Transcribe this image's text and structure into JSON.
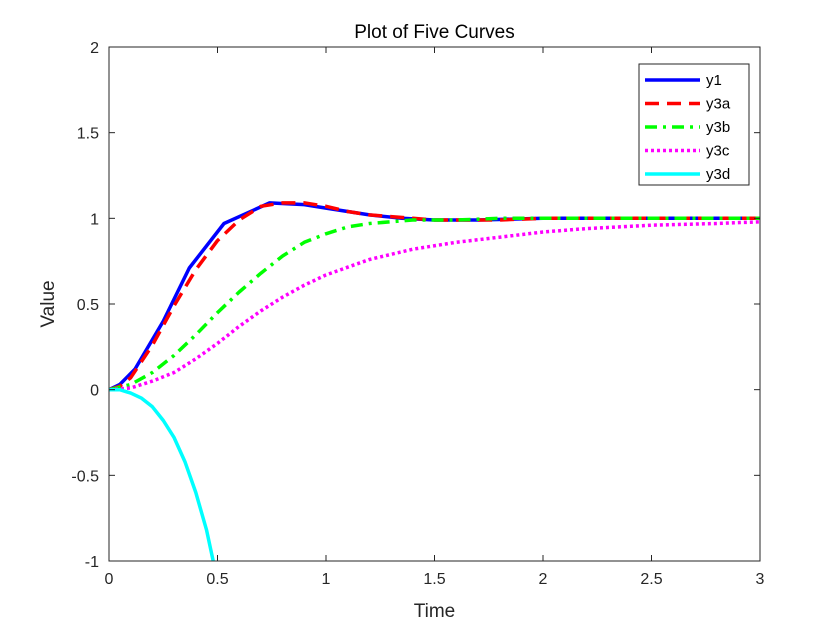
{
  "chart_data": {
    "type": "line",
    "title": "Plot of Five Curves",
    "xlabel": "Time",
    "ylabel": "Value",
    "xlim": [
      0,
      3
    ],
    "ylim": [
      -1,
      2
    ],
    "xticks": [
      0,
      0.5,
      1,
      1.5,
      2,
      2.5,
      3
    ],
    "xtick_labels": [
      "0",
      "0.5",
      "1",
      "1.5",
      "2",
      "2.5",
      "3"
    ],
    "yticks": [
      -1,
      -0.5,
      0,
      0.5,
      1,
      1.5,
      2
    ],
    "ytick_labels": [
      "-1",
      "-0.5",
      "0",
      "0.5",
      "1",
      "1.5",
      "2"
    ],
    "grid": false,
    "legend_position": "top-right",
    "series": [
      {
        "name": "y1",
        "color": "#0000ff",
        "style": "solid",
        "x": [
          0,
          0.05,
          0.12,
          0.25,
          0.37,
          0.53,
          0.74,
          0.9,
          1.0,
          1.1,
          1.2,
          1.35,
          1.5,
          1.7,
          2.0,
          2.5,
          3.0
        ],
        "y": [
          0,
          0.03,
          0.12,
          0.4,
          0.71,
          0.97,
          1.09,
          1.08,
          1.06,
          1.04,
          1.02,
          1.0,
          0.99,
          0.99,
          1.0,
          1.0,
          1.0
        ]
      },
      {
        "name": "y3a",
        "color": "#ff0000",
        "style": "dashed",
        "x": [
          0,
          0.05,
          0.1,
          0.2,
          0.3,
          0.4,
          0.5,
          0.6,
          0.7,
          0.8,
          0.9,
          1.0,
          1.1,
          1.2,
          1.3,
          1.4,
          1.5,
          1.6,
          1.8,
          2.0,
          2.5,
          3.0
        ],
        "y": [
          0,
          0.02,
          0.07,
          0.26,
          0.49,
          0.7,
          0.87,
          0.99,
          1.07,
          1.09,
          1.09,
          1.07,
          1.04,
          1.02,
          1.01,
          1.0,
          0.99,
          0.99,
          0.99,
          1.0,
          1.0,
          1.0
        ]
      },
      {
        "name": "y3b",
        "color": "#00ff00",
        "style": "dashdot",
        "x": [
          0,
          0.1,
          0.2,
          0.3,
          0.4,
          0.5,
          0.6,
          0.7,
          0.8,
          0.9,
          1.0,
          1.1,
          1.2,
          1.4,
          1.6,
          1.8,
          2.0,
          2.5,
          3.0
        ],
        "y": [
          0,
          0.03,
          0.1,
          0.2,
          0.32,
          0.45,
          0.57,
          0.68,
          0.78,
          0.86,
          0.91,
          0.95,
          0.97,
          0.99,
          0.99,
          1.0,
          1.0,
          1.0,
          1.0
        ]
      },
      {
        "name": "y3c",
        "color": "#ff00ff",
        "style": "dotted",
        "x": [
          0,
          0.1,
          0.2,
          0.3,
          0.4,
          0.5,
          0.6,
          0.7,
          0.8,
          0.9,
          1.0,
          1.2,
          1.4,
          1.6,
          1.8,
          2.0,
          2.2,
          2.5,
          2.8,
          3.0
        ],
        "y": [
          0,
          0.01,
          0.05,
          0.1,
          0.18,
          0.27,
          0.37,
          0.46,
          0.54,
          0.61,
          0.67,
          0.76,
          0.82,
          0.86,
          0.89,
          0.92,
          0.94,
          0.96,
          0.97,
          0.98
        ]
      },
      {
        "name": "y3d",
        "color": "#00ffff",
        "style": "solid",
        "x": [
          0,
          0.05,
          0.1,
          0.15,
          0.2,
          0.25,
          0.3,
          0.35,
          0.4,
          0.45,
          0.48
        ],
        "y": [
          0,
          0.0,
          -0.02,
          -0.05,
          -0.1,
          -0.18,
          -0.28,
          -0.42,
          -0.6,
          -0.82,
          -1.0
        ]
      }
    ]
  }
}
